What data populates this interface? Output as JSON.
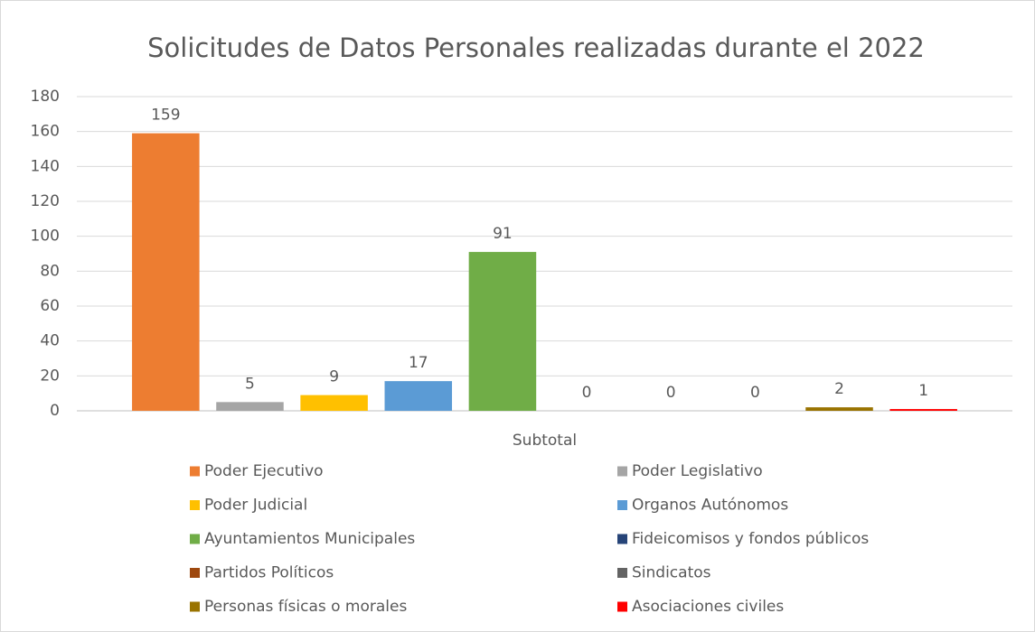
{
  "chart_data": {
    "type": "bar",
    "title": "Solicitudes de Datos Personales realizadas durante el 2022",
    "categories": [
      "Subtotal"
    ],
    "series": [
      {
        "name": "Poder Ejecutivo",
        "color": "#ED7D31",
        "values": [
          159
        ]
      },
      {
        "name": "Poder Legislativo",
        "color": "#A5A5A5",
        "values": [
          5
        ]
      },
      {
        "name": "Poder Judicial",
        "color": "#FFC000",
        "values": [
          9
        ]
      },
      {
        "name": "Organos Autónomos",
        "color": "#5B9BD5",
        "values": [
          17
        ]
      },
      {
        "name": "Ayuntamientos Municipales",
        "color": "#70AD47",
        "values": [
          91
        ]
      },
      {
        "name": "Fideicomisos y fondos públicos",
        "color": "#264478",
        "values": [
          0
        ]
      },
      {
        "name": "Partidos Políticos",
        "color": "#9E480E",
        "values": [
          0
        ]
      },
      {
        "name": "Sindicatos",
        "color": "#636363",
        "values": [
          0
        ]
      },
      {
        "name": "Personas físicas o morales",
        "color": "#997300",
        "values": [
          2
        ]
      },
      {
        "name": "Asociaciones civiles",
        "color": "#FF0000",
        "values": [
          1
        ]
      }
    ],
    "ylim": [
      0,
      180
    ],
    "yticks": [
      0,
      20,
      40,
      60,
      80,
      100,
      120,
      140,
      160,
      180
    ],
    "grid": true,
    "legend": "bottom"
  }
}
